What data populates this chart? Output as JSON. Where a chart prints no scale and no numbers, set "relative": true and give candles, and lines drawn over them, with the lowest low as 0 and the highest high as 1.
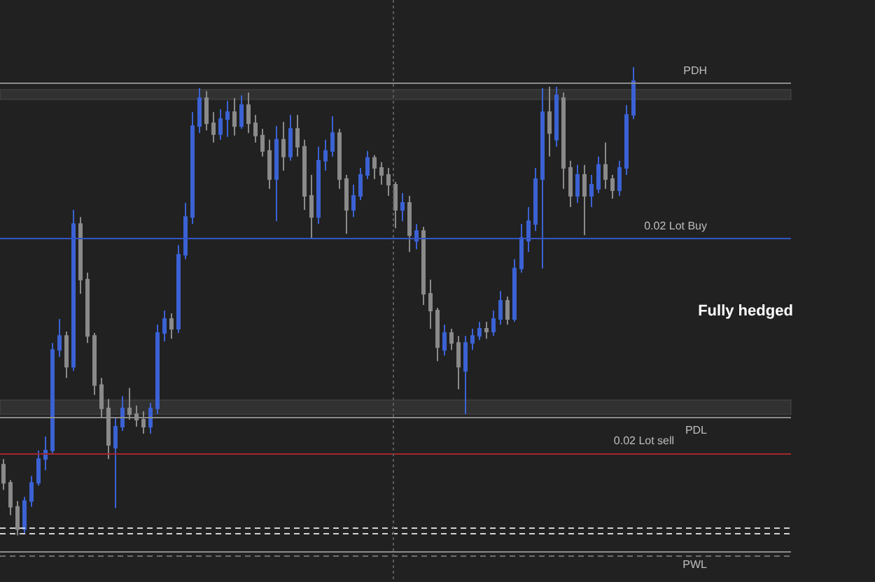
{
  "chart_data": {
    "type": "candlestick",
    "relative": true,
    "tick_labels": false,
    "categories": [
      null,
      null,
      null,
      null,
      null,
      null,
      null,
      null,
      null,
      null,
      null,
      null,
      null,
      null,
      null,
      null,
      null,
      null,
      null,
      null,
      null,
      null,
      null,
      null,
      null,
      null,
      null,
      null,
      null,
      null,
      null,
      null,
      null,
      null,
      null,
      null,
      null,
      null,
      null,
      null,
      null,
      null,
      null,
      null,
      null,
      null,
      null,
      null,
      null,
      null,
      null,
      null,
      null,
      null,
      null,
      null,
      null,
      null,
      null,
      null,
      null,
      null,
      null,
      null,
      null,
      null,
      null,
      null,
      null,
      null,
      null,
      null,
      null,
      null,
      null,
      null,
      null,
      null,
      null,
      null,
      null,
      null,
      null,
      null,
      null,
      null,
      null,
      null,
      null,
      null,
      null
    ],
    "ohlc": [
      [
        0.151,
        0.163,
        0.097,
        0.112
      ],
      [
        0.112,
        0.118,
        0.043,
        0.061
      ],
      [
        0.061,
        0.073,
        0,
        0.013
      ],
      [
        0.013,
        0.082,
        0.004,
        0.073
      ],
      [
        0.073,
        0.127,
        0.061,
        0.112
      ],
      [
        0.112,
        0.181,
        0.106,
        0.163
      ],
      [
        0.163,
        0.211,
        0.139,
        0.181
      ],
      [
        0.181,
        0.411,
        0.172,
        0.396
      ],
      [
        0.396,
        0.462,
        0.381,
        0.426
      ],
      [
        0.426,
        0.435,
        0.336,
        0.36
      ],
      [
        0.36,
        0.695,
        0.351,
        0.665
      ],
      [
        0.665,
        0.68,
        0.516,
        0.546
      ],
      [
        0.546,
        0.561,
        0.411,
        0.426
      ],
      [
        0.426,
        0.432,
        0.3,
        0.321
      ],
      [
        0.321,
        0.336,
        0.253,
        0.271
      ],
      [
        0.271,
        0.291,
        0.163,
        0.193
      ],
      [
        0.187,
        0.253,
        0.058,
        0.232
      ],
      [
        0.232,
        0.297,
        0.223,
        0.271
      ],
      [
        0.271,
        0.315,
        0.247,
        0.259
      ],
      [
        0.259,
        0.277,
        0.232,
        0.247
      ],
      [
        0.247,
        0.265,
        0.217,
        0.232
      ],
      [
        0.232,
        0.283,
        0.217,
        0.271
      ],
      [
        0.271,
        0.45,
        0.259,
        0.432
      ],
      [
        0.432,
        0.48,
        0.414,
        0.462
      ],
      [
        0.462,
        0.474,
        0.42,
        0.441
      ],
      [
        0.441,
        0.62,
        0.432,
        0.599
      ],
      [
        0.599,
        0.71,
        0.59,
        0.68
      ],
      [
        0.68,
        0.904,
        0.665,
        0.874
      ],
      [
        0.874,
        0.955,
        0.859,
        0.934
      ],
      [
        0.934,
        0.949,
        0.865,
        0.88
      ],
      [
        0.88,
        0.904,
        0.839,
        0.857
      ],
      [
        0.857,
        0.91,
        0.845,
        0.889
      ],
      [
        0.889,
        0.928,
        0.851,
        0.904
      ],
      [
        0.904,
        0.934,
        0.854,
        0.874
      ],
      [
        0.874,
        0.94,
        0.868,
        0.919
      ],
      [
        0.919,
        0.946,
        0.859,
        0.88
      ],
      [
        0.88,
        0.898,
        0.839,
        0.854
      ],
      [
        0.854,
        0.868,
        0.809,
        0.821
      ],
      [
        0.821,
        0.845,
        0.74,
        0.761
      ],
      [
        0.761,
        0.874,
        0.671,
        0.845
      ],
      [
        0.845,
        0.883,
        0.779,
        0.809
      ],
      [
        0.809,
        0.898,
        0.8,
        0.868
      ],
      [
        0.868,
        0.898,
        0.809,
        0.83
      ],
      [
        0.83,
        0.845,
        0.695,
        0.725
      ],
      [
        0.725,
        0.77,
        0.635,
        0.68
      ],
      [
        0.68,
        0.83,
        0.665,
        0.8
      ],
      [
        0.8,
        0.845,
        0.779,
        0.821
      ],
      [
        0.821,
        0.895,
        0.809,
        0.859
      ],
      [
        0.859,
        0.868,
        0.74,
        0.761
      ],
      [
        0.761,
        0.77,
        0.644,
        0.695
      ],
      [
        0.695,
        0.749,
        0.68,
        0.725
      ],
      [
        0.725,
        0.785,
        0.716,
        0.77
      ],
      [
        0.77,
        0.821,
        0.761,
        0.806
      ],
      [
        0.806,
        0.812,
        0.761,
        0.785
      ],
      [
        0.785,
        0.797,
        0.749,
        0.77
      ],
      [
        0.77,
        0.785,
        0.725,
        0.749
      ],
      [
        0.749,
        0.755,
        0.656,
        0.695
      ],
      [
        0.695,
        0.731,
        0.671,
        0.71
      ],
      [
        0.71,
        0.725,
        0.605,
        0.641
      ],
      [
        0.629,
        0.665,
        0.611,
        0.65
      ],
      [
        0.65,
        0.659,
        0.492,
        0.516
      ],
      [
        0.516,
        0.546,
        0.441,
        0.48
      ],
      [
        0.48,
        0.486,
        0.372,
        0.402
      ],
      [
        0.396,
        0.45,
        0.384,
        0.432
      ],
      [
        0.432,
        0.441,
        0.396,
        0.411
      ],
      [
        0.411,
        0.426,
        0.312,
        0.36
      ],
      [
        0.351,
        0.426,
        0.259,
        0.411
      ],
      [
        0.411,
        0.441,
        0.396,
        0.426
      ],
      [
        0.426,
        0.456,
        0.417,
        0.441
      ],
      [
        0.441,
        0.456,
        0.42,
        0.435
      ],
      [
        0.435,
        0.48,
        0.426,
        0.462
      ],
      [
        0.462,
        0.522,
        0.45,
        0.501
      ],
      [
        0.501,
        0.51,
        0.45,
        0.462
      ],
      [
        0.462,
        0.59,
        0.456,
        0.57
      ],
      [
        0.57,
        0.665,
        0.561,
        0.635
      ],
      [
        0.629,
        0.701,
        0.605,
        0.671
      ],
      [
        0.665,
        0.785,
        0.65,
        0.761
      ],
      [
        0.761,
        0.955,
        0.57,
        0.904
      ],
      [
        0.904,
        0.958,
        0.809,
        0.859
      ],
      [
        0.845,
        0.958,
        0.83,
        0.94
      ],
      [
        0.934,
        0.946,
        0.74,
        0.785
      ],
      [
        0.785,
        0.8,
        0.701,
        0.725
      ],
      [
        0.725,
        0.791,
        0.71,
        0.77
      ],
      [
        0.77,
        0.791,
        0.641,
        0.725
      ],
      [
        0.725,
        0.77,
        0.701,
        0.749
      ],
      [
        0.74,
        0.809,
        0.731,
        0.791
      ],
      [
        0.791,
        0.839,
        0.74,
        0.761
      ],
      [
        0.761,
        0.77,
        0.719,
        0.737
      ],
      [
        0.737,
        0.8,
        0.725,
        0.785
      ],
      [
        0.785,
        0.919,
        0.77,
        0.898
      ],
      [
        0.898,
        1,
        0.889,
        0.97
      ]
    ],
    "colors": [
      "#8a8a8a",
      "#8a8a8a",
      "#8a8a8a",
      "#3b62d4",
      "#3b62d4",
      "#3b62d4",
      "#3b62d4",
      "#3b62d4",
      "#3b62d4",
      "#8a8a8a",
      "#3b62d4",
      "#8a8a8a",
      "#8a8a8a",
      "#8a8a8a",
      "#8a8a8a",
      "#8a8a8a",
      "#3b62d4",
      "#3b62d4",
      "#8a8a8a",
      "#8a8a8a",
      "#8a8a8a",
      "#3b62d4",
      "#3b62d4",
      "#3b62d4",
      "#8a8a8a",
      "#3b62d4",
      "#3b62d4",
      "#3b62d4",
      "#3b62d4",
      "#8a8a8a",
      "#8a8a8a",
      "#3b62d4",
      "#3b62d4",
      "#8a8a8a",
      "#3b62d4",
      "#8a8a8a",
      "#8a8a8a",
      "#8a8a8a",
      "#8a8a8a",
      "#3b62d4",
      "#8a8a8a",
      "#3b62d4",
      "#8a8a8a",
      "#8a8a8a",
      "#8a8a8a",
      "#3b62d4",
      "#3b62d4",
      "#3b62d4",
      "#8a8a8a",
      "#8a8a8a",
      "#3b62d4",
      "#3b62d4",
      "#3b62d4",
      "#8a8a8a",
      "#8a8a8a",
      "#8a8a8a",
      "#8a8a8a",
      "#3b62d4",
      "#8a8a8a",
      "#3b62d4",
      "#8a8a8a",
      "#8a8a8a",
      "#8a8a8a",
      "#3b62d4",
      "#8a8a8a",
      "#8a8a8a",
      "#3b62d4",
      "#3b62d4",
      "#3b62d4",
      "#8a8a8a",
      "#3b62d4",
      "#3b62d4",
      "#8a8a8a",
      "#3b62d4",
      "#3b62d4",
      "#3b62d4",
      "#3b62d4",
      "#3b62d4",
      "#8a8a8a",
      "#3b62d4",
      "#8a8a8a",
      "#8a8a8a",
      "#3b62d4",
      "#8a8a8a",
      "#3b62d4",
      "#3b62d4",
      "#8a8a8a",
      "#8a8a8a",
      "#3b62d4",
      "#3b62d4",
      "#3b62d4"
    ],
    "ref_lines": [
      {
        "axis": "y",
        "value": 0.966,
        "label": "PDH",
        "color": "#8c8c8c"
      },
      {
        "axis": "y",
        "value": 0.634,
        "label": "0.02 Lot Buy",
        "color": "#3356c4"
      },
      {
        "axis": "y",
        "value": 0.251,
        "label": "PDL",
        "color": "#8c8c8c"
      },
      {
        "axis": "y",
        "value": 0.175,
        "label": "0.02 Lot sell",
        "color": "#a3262b"
      },
      {
        "axis": "y",
        "value": 0.016,
        "color": "#d2d2d2",
        "line_style": "dashed"
      },
      {
        "axis": "y",
        "value": 0.005,
        "color": "#d2d2d2",
        "line_style": "dashed"
      },
      {
        "axis": "y",
        "value": -0.035,
        "label": "PWL",
        "color": "#8c8c8c"
      },
      {
        "axis": "y",
        "value": -0.043,
        "color": "#6e6e6e",
        "line_style": "dashed"
      }
    ],
    "bands": [
      {
        "axis": "y",
        "from": 0.931,
        "to": 0.952,
        "color": "#c8c8c8"
      },
      {
        "axis": "y",
        "from": 0.258,
        "to": 0.289,
        "color": "#c8c8c8"
      }
    ],
    "annotations": [
      "Fully hedged"
    ]
  }
}
